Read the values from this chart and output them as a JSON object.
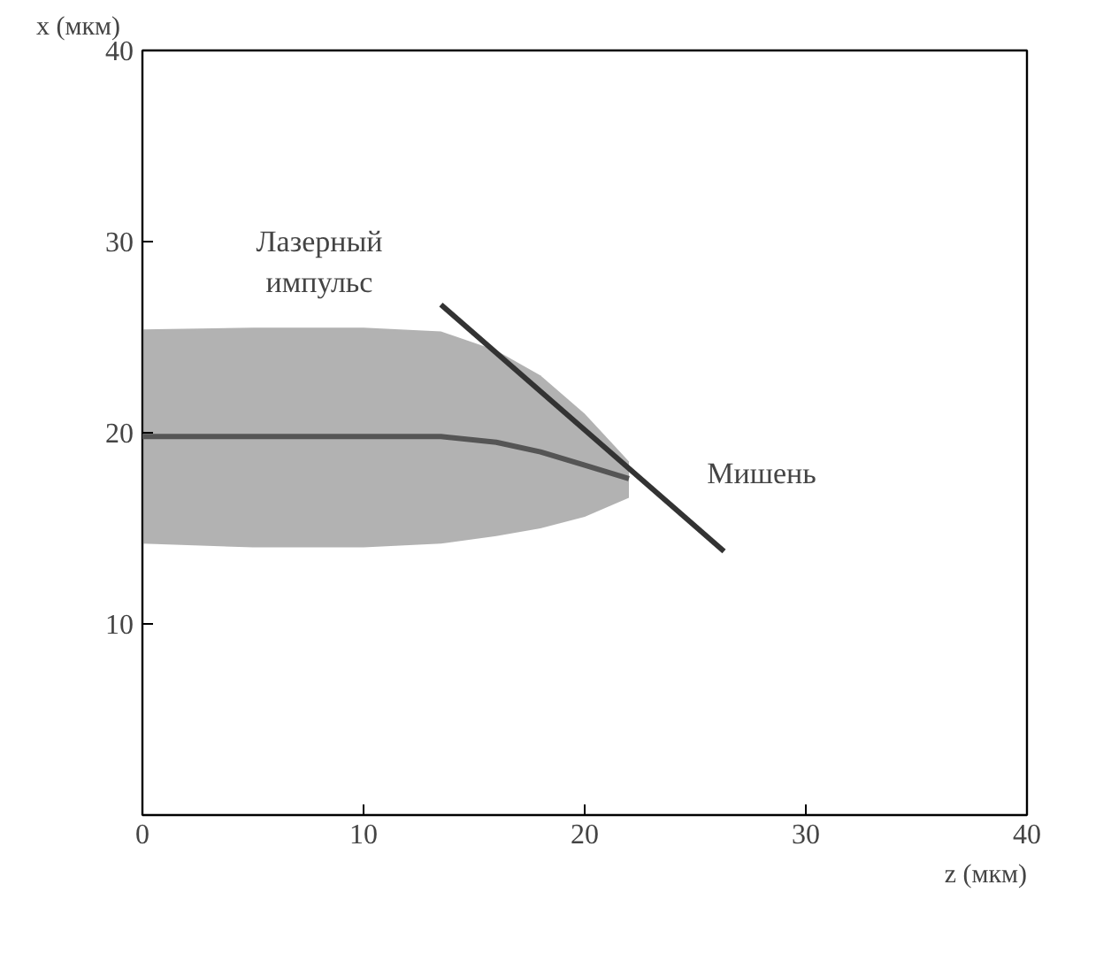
{
  "chart_data": {
    "type": "line",
    "xlabel": "z (мкм)",
    "ylabel": "x (мкм)",
    "xlim": [
      0,
      40
    ],
    "ylim": [
      0,
      40
    ],
    "xticks": [
      0,
      10,
      20,
      30,
      40
    ],
    "yticks": [
      10,
      20,
      30,
      40
    ],
    "grid": false,
    "series": [
      {
        "color": "#555555",
        "x": [
          0,
          5,
          10,
          13.5,
          16,
          18,
          20,
          22
        ],
        "values": [
          19.8,
          19.8,
          19.8,
          19.8,
          19.5,
          19,
          18.3,
          17.6
        ],
        "lower": [
          14.2,
          14.0,
          14.0,
          14.2,
          14.6,
          15.0,
          15.6,
          16.6
        ],
        "upper": [
          25.4,
          25.5,
          25.5,
          25.3,
          24.3,
          23,
          21,
          18.5
        ]
      },
      {
        "color": "#333333",
        "x": [
          13.5,
          26.3
        ],
        "values": [
          26.7,
          13.8
        ]
      }
    ],
    "annotations": [
      "Лазерный\nимпульс",
      "Мишень"
    ]
  }
}
